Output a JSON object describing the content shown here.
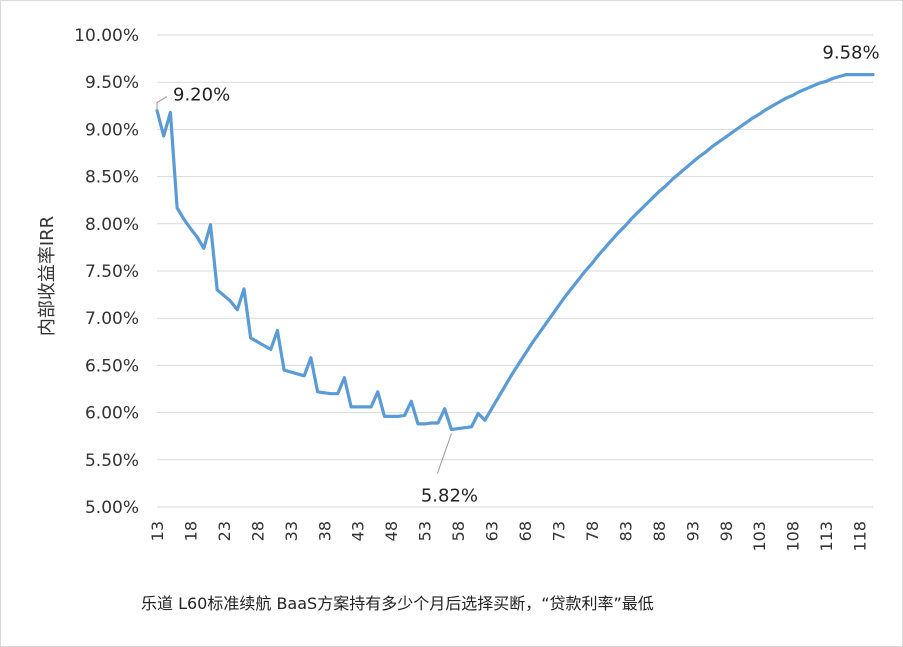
{
  "chart_data": {
    "type": "line",
    "title": "",
    "ylabel": "内部收益率IRR",
    "xlabel": "",
    "caption": "乐道 L60标准续航 BaaS方案持有多少个月后选择买断，“贷款利率”最低",
    "ylim": [
      0.05,
      0.1
    ],
    "y_ticks": [
      "5.00%",
      "5.50%",
      "6.00%",
      "6.50%",
      "7.00%",
      "7.50%",
      "8.00%",
      "8.50%",
      "9.00%",
      "9.50%",
      "10.00%"
    ],
    "x_ticks": [
      "13",
      "18",
      "23",
      "28",
      "33",
      "38",
      "43",
      "48",
      "53",
      "58",
      "63",
      "68",
      "73",
      "78",
      "83",
      "88",
      "93",
      "98",
      "103",
      "108",
      "113",
      "118"
    ],
    "xlim": [
      13,
      120
    ],
    "grid": "horizontal",
    "line_color": "#5b9bd5",
    "series": [
      {
        "x": [
          13,
          14,
          15,
          16,
          17,
          18,
          19,
          20,
          21,
          22,
          23,
          24,
          25,
          26,
          27,
          28,
          29,
          30,
          31,
          32,
          33,
          34,
          35,
          36,
          37,
          38,
          39,
          40,
          41,
          42,
          43,
          44,
          45,
          46,
          47,
          48,
          49,
          50,
          51,
          52,
          53,
          54,
          55,
          56,
          57,
          58,
          59,
          60,
          61,
          62,
          63,
          64,
          65,
          66,
          67,
          68,
          69,
          70,
          71,
          72,
          73,
          74,
          75,
          76,
          77,
          78,
          79,
          80,
          81,
          82,
          83,
          84,
          85,
          86,
          87,
          88,
          89,
          90,
          91,
          92,
          93,
          94,
          95,
          96,
          97,
          98,
          99,
          100,
          101,
          102,
          103,
          104,
          105,
          106,
          107,
          108,
          109,
          110,
          111,
          112,
          113,
          114,
          115,
          116,
          117,
          118,
          119,
          120
        ],
        "values": [
          0.092,
          0.0893,
          0.0918,
          0.0817,
          0.0805,
          0.0795,
          0.0786,
          0.0774,
          0.0799,
          0.073,
          0.0724,
          0.0718,
          0.0709,
          0.0731,
          0.0679,
          0.0675,
          0.0671,
          0.0667,
          0.0687,
          0.0645,
          0.0643,
          0.0641,
          0.0639,
          0.0658,
          0.0622,
          0.0621,
          0.062,
          0.062,
          0.0637,
          0.0606,
          0.0606,
          0.0606,
          0.0606,
          0.0622,
          0.0596,
          0.0596,
          0.0596,
          0.0597,
          0.0612,
          0.0588,
          0.0588,
          0.0589,
          0.0589,
          0.0604,
          0.0582,
          0.0583,
          0.0584,
          0.0585,
          0.0599,
          0.0592,
          0.0604,
          0.0616,
          0.0628,
          0.064,
          0.0651,
          0.0662,
          0.0673,
          0.0683,
          0.0693,
          0.0703,
          0.0713,
          0.0723,
          0.0732,
          0.0741,
          0.075,
          0.0758,
          0.0767,
          0.0775,
          0.0783,
          0.0791,
          0.0798,
          0.0806,
          0.0813,
          0.082,
          0.0827,
          0.0834,
          0.084,
          0.0847,
          0.0853,
          0.0859,
          0.0865,
          0.0871,
          0.0876,
          0.0882,
          0.0887,
          0.0892,
          0.0897,
          0.0902,
          0.0907,
          0.0912,
          0.0916,
          0.0921,
          0.0925,
          0.0929,
          0.0933,
          0.0936,
          0.094,
          0.0943,
          0.0946,
          0.0949,
          0.0951,
          0.0954,
          0.0956,
          0.0958,
          0.0958,
          0.0958,
          0.0958,
          0.0958
        ]
      }
    ],
    "annotations": [
      {
        "x": 13,
        "y": 0.092,
        "text": "9.20%"
      },
      {
        "x": 57,
        "y": 0.0582,
        "text": "5.82%"
      },
      {
        "x": 120,
        "y": 0.0958,
        "text": "9.58%"
      }
    ]
  }
}
